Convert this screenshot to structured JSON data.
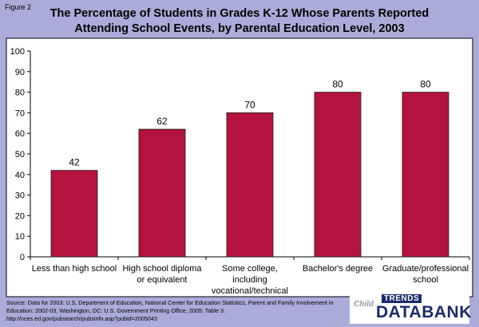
{
  "figure_label": "Figure 2",
  "title_line1": "The Percentage of Students in Grades K-12 Whose Parents Reported",
  "title_line2": "Attending School Events, by Parental Education Level, 2003",
  "source_line1": "Source: Data for 2003: U.S. Department of Education, National Center for Education Statistics, Parent and Family Involvement in",
  "source_line2": "Education: 2002-03, Washington, DC: U.S. Government Printing Office, 2005: Table 3.",
  "source_line3": "http://nces.ed.gov/pubsearch/pubsinfo.asp?pubid=2005043",
  "logo": {
    "child": "Child",
    "trends": "TRENDS",
    "databank": "DATABANK"
  },
  "colors": {
    "background": "#ababd9",
    "plot_background": "#ffffff",
    "bar": "#b5133f",
    "bar_stroke": "#1a1a1a"
  },
  "chart_data": {
    "type": "bar",
    "categories": [
      [
        "Less than high school"
      ],
      [
        "High school diploma",
        "or equivalent"
      ],
      [
        "Some college,",
        "including",
        "vocational/technical"
      ],
      [
        "Bachelor's degree"
      ],
      [
        "Graduate/professional",
        "school"
      ]
    ],
    "values": [
      42,
      62,
      70,
      80,
      80
    ],
    "data_labels": [
      "42",
      "62",
      "70",
      "80",
      "80"
    ],
    "ylim": [
      0,
      100
    ],
    "yticks": [
      0,
      10,
      20,
      30,
      40,
      50,
      60,
      70,
      80,
      90,
      100
    ],
    "grid": false,
    "legend": "none"
  }
}
